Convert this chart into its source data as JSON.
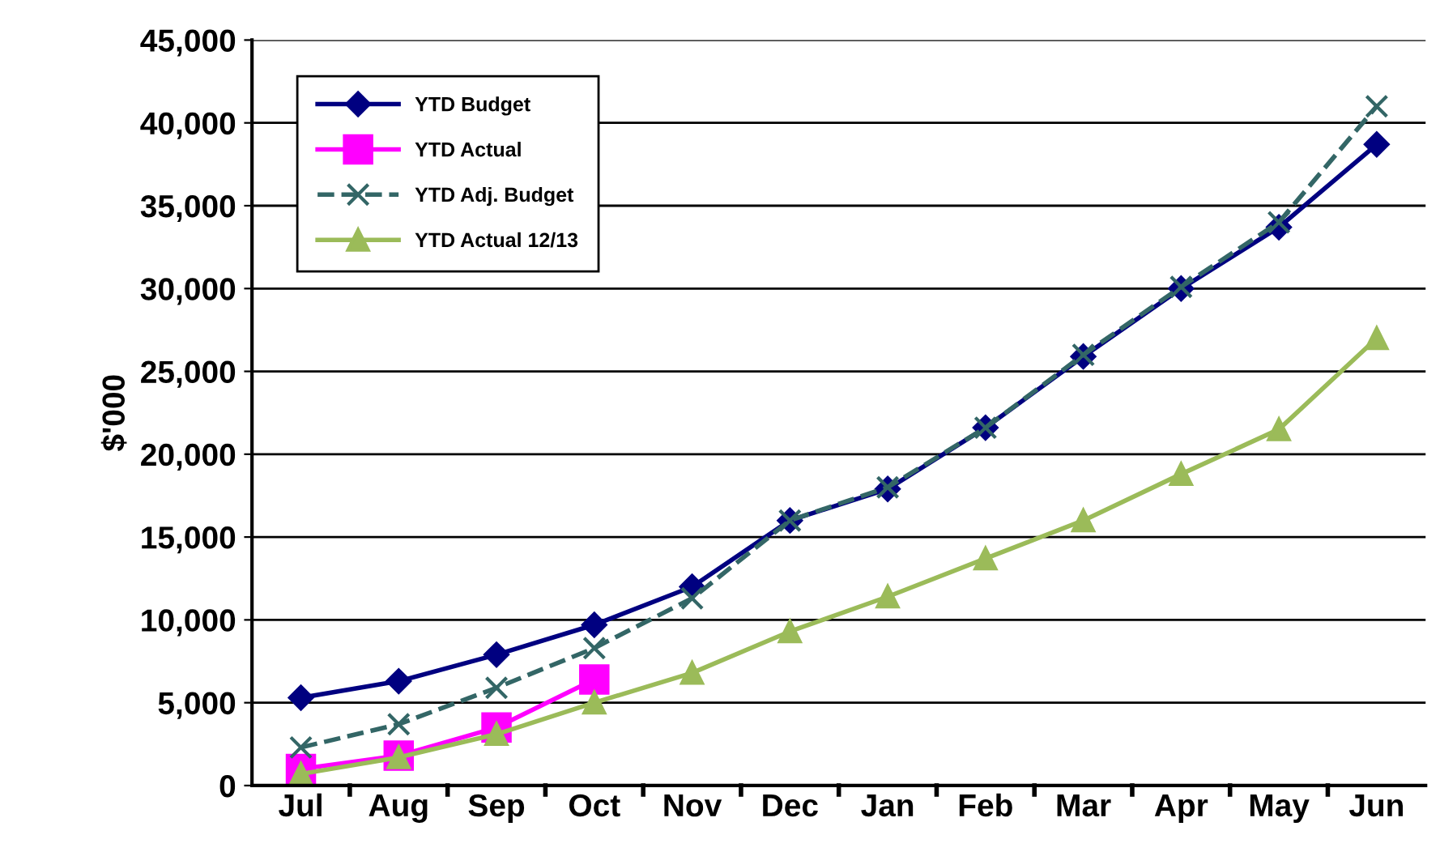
{
  "chart_data": {
    "type": "line",
    "ylabel": "$'000",
    "categories": [
      "Jul",
      "Aug",
      "Sep",
      "Oct",
      "Nov",
      "Dec",
      "Jan",
      "Feb",
      "Mar",
      "Apr",
      "May",
      "Jun"
    ],
    "series": [
      {
        "name": "YTD Budget",
        "color": "#000080",
        "marker": "diamond",
        "line_style": "solid",
        "values": [
          5300,
          6300,
          7900,
          9700,
          12000,
          16000,
          17900,
          21600,
          25900,
          30000,
          33700,
          38700
        ]
      },
      {
        "name": "YTD Actual",
        "color": "#ff00ff",
        "marker": "square",
        "line_style": "solid",
        "values": [
          1000,
          1800,
          3500,
          6400,
          null,
          null,
          null,
          null,
          null,
          null,
          null,
          null
        ]
      },
      {
        "name": "YTD Adj. Budget",
        "color": "#336666",
        "marker": "cross",
        "line_style": "dashed",
        "values": [
          2300,
          3700,
          5900,
          8300,
          11300,
          16000,
          18000,
          21600,
          26000,
          30100,
          34000,
          41000
        ]
      },
      {
        "name": "YTD Actual 12/13",
        "color": "#9bbb59",
        "marker": "triangle",
        "line_style": "solid",
        "values": [
          700,
          1700,
          3100,
          5000,
          6800,
          9300,
          11400,
          13700,
          16000,
          18800,
          21500,
          27000
        ]
      }
    ],
    "ylim": [
      0,
      45000
    ],
    "yticks": [
      {
        "value": 0,
        "label": "0"
      },
      {
        "value": 5000,
        "label": "5,000"
      },
      {
        "value": 10000,
        "label": "10,000"
      },
      {
        "value": 15000,
        "label": "15,000"
      },
      {
        "value": 20000,
        "label": "20,000"
      },
      {
        "value": 25000,
        "label": "25,000"
      },
      {
        "value": 30000,
        "label": "30,000"
      },
      {
        "value": 35000,
        "label": "35,000"
      },
      {
        "value": 40000,
        "label": "40,000"
      },
      {
        "value": 45000,
        "label": "45,000"
      }
    ],
    "grid": "y",
    "legend": "top left"
  }
}
